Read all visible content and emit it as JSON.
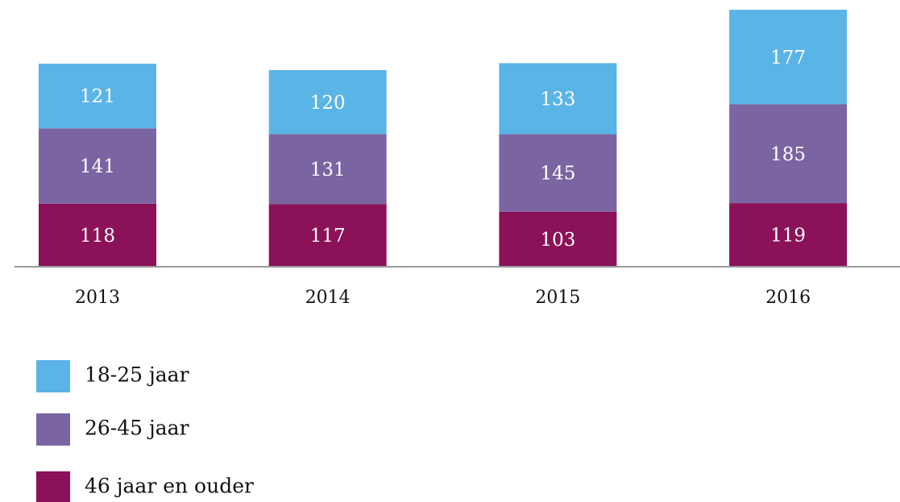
{
  "chart_data": {
    "type": "stacked_bar",
    "categories": [
      "2013",
      "2014",
      "2015",
      "2016"
    ],
    "series": [
      {
        "name": "18-25 jaar",
        "color": "#5ab4e6",
        "values": [
          121,
          120,
          133,
          177
        ]
      },
      {
        "name": "26-45 jaar",
        "color": "#7b64a2",
        "values": [
          141,
          131,
          145,
          185
        ]
      },
      {
        "name": "46 jaar en ouder",
        "color": "#8b1158",
        "values": [
          118,
          117,
          103,
          119
        ]
      }
    ]
  }
}
